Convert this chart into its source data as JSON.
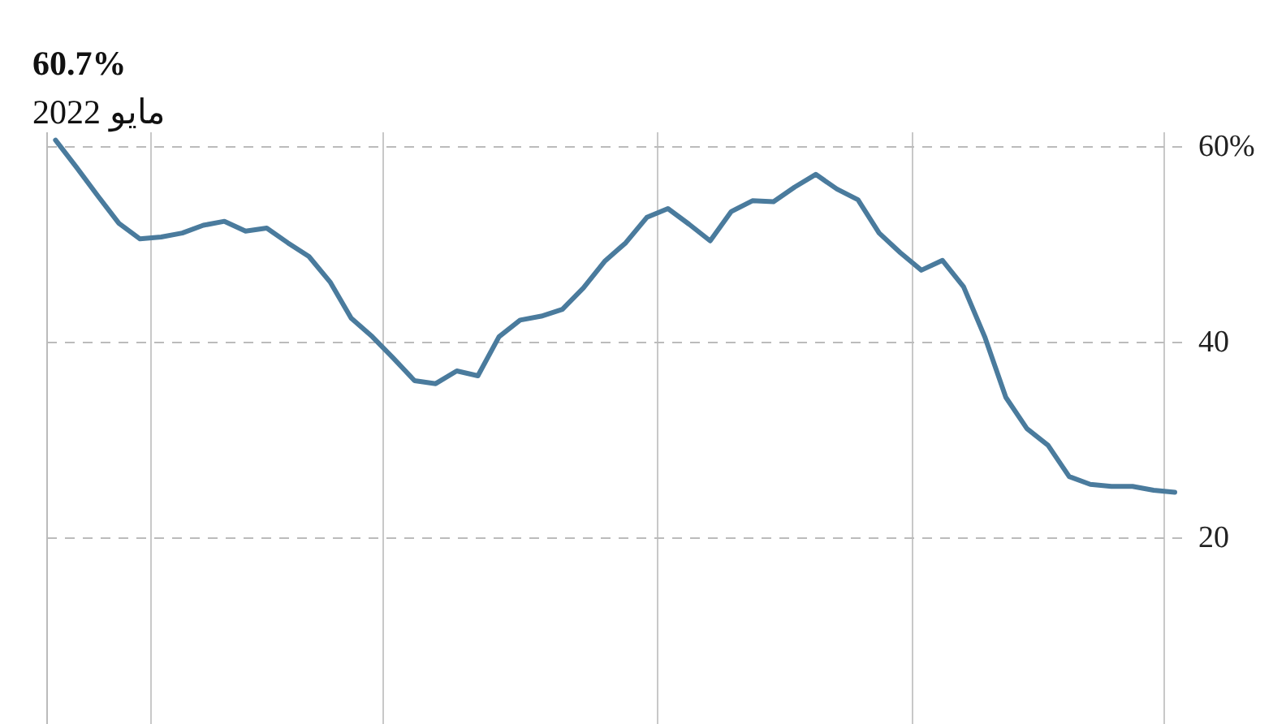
{
  "chart_data": {
    "type": "line",
    "categories": [
      null,
      null,
      null,
      null,
      null,
      null,
      null,
      null,
      null,
      null,
      null,
      null,
      null,
      null,
      null,
      null,
      null,
      null,
      null,
      null,
      null,
      null,
      null,
      null,
      null,
      null,
      null,
      null,
      null,
      null,
      null,
      null,
      null,
      null,
      null,
      null,
      null,
      null,
      null,
      null,
      null,
      null,
      null,
      null,
      null,
      null,
      null,
      null,
      null,
      null,
      null,
      null,
      null,
      null
    ],
    "series": [
      {
        "color": "#4a7b9d",
        "values": [
          60.7,
          57.9,
          55.0,
          52.2,
          50.6,
          50.8,
          51.2,
          52.0,
          52.4,
          51.4,
          51.7,
          50.2,
          48.8,
          46.2,
          42.5,
          40.6,
          38.4,
          36.1,
          35.8,
          37.1,
          36.6,
          40.6,
          42.3,
          42.7,
          43.4,
          45.6,
          48.3,
          50.2,
          52.8,
          53.7,
          52.1,
          50.4,
          53.4,
          54.5,
          54.4,
          55.9,
          57.2,
          55.7,
          54.6,
          51.2,
          49.2,
          47.4,
          48.4,
          45.7,
          40.6,
          34.4,
          31.2,
          29.5,
          26.3,
          25.5,
          25.3,
          25.3,
          24.9,
          24.7
        ]
      }
    ],
    "ylim": [
      1,
      61.5
    ],
    "yticks": [
      {
        "value": 60,
        "label": "60%"
      },
      {
        "value": 40,
        "label": "40"
      },
      {
        "value": 20,
        "label": "20"
      }
    ],
    "grid": "y",
    "tick_labels": "y",
    "annotations": [
      "60.7%",
      "مايو 2022"
    ]
  }
}
